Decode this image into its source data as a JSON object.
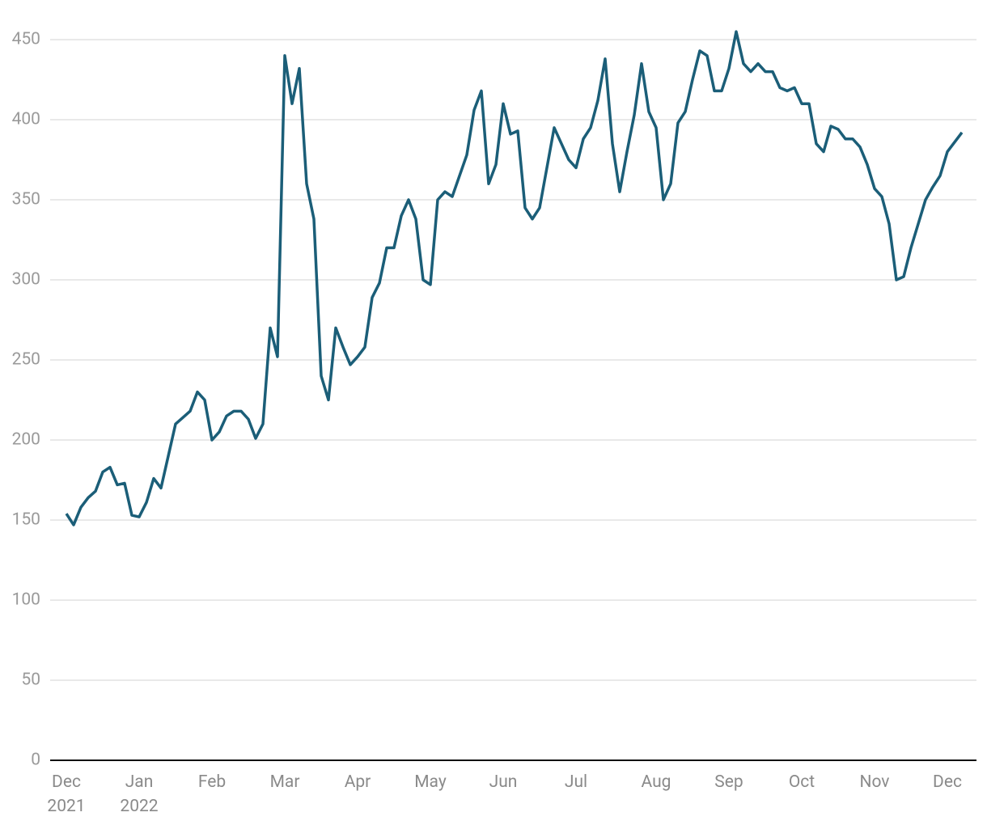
{
  "chart_data": {
    "type": "line",
    "categories": [
      "Dec\n2021",
      null,
      null,
      null,
      null,
      null,
      null,
      null,
      null,
      null,
      "Jan\n2022",
      null,
      null,
      null,
      null,
      null,
      null,
      null,
      null,
      null,
      "Feb",
      null,
      null,
      null,
      null,
      null,
      null,
      null,
      null,
      null,
      "Mar",
      null,
      null,
      null,
      null,
      null,
      null,
      null,
      null,
      null,
      "Apr",
      null,
      null,
      null,
      null,
      null,
      null,
      null,
      null,
      null,
      "May",
      null,
      null,
      null,
      null,
      null,
      null,
      null,
      null,
      null,
      "Jun",
      null,
      null,
      null,
      null,
      null,
      null,
      null,
      null,
      null,
      "Jul",
      null,
      null,
      null,
      null,
      null,
      null,
      null,
      null,
      null,
      null,
      "Aug",
      null,
      null,
      null,
      null,
      null,
      null,
      null,
      null,
      null,
      "Sep",
      null,
      null,
      null,
      null,
      null,
      null,
      null,
      null,
      null,
      "Oct",
      null,
      null,
      null,
      null,
      null,
      null,
      null,
      null,
      null,
      "Nov",
      null,
      null,
      null,
      null,
      null,
      null,
      null,
      null,
      null,
      "Dec",
      null,
      null
    ],
    "values": [
      154,
      147,
      158,
      164,
      168,
      180,
      183,
      172,
      173,
      153,
      152,
      161,
      176,
      170,
      190,
      210,
      214,
      218,
      230,
      225,
      200,
      205,
      215,
      218,
      218,
      213,
      201,
      210,
      270,
      252,
      440,
      410,
      432,
      360,
      338,
      240,
      225,
      270,
      258,
      247,
      252,
      258,
      289,
      298,
      320,
      320,
      340,
      350,
      338,
      300,
      297,
      350,
      355,
      352,
      365,
      378,
      406,
      418,
      360,
      372,
      410,
      391,
      393,
      345,
      338,
      345,
      370,
      395,
      385,
      375,
      370,
      388,
      395,
      412,
      438,
      385,
      355,
      380,
      403,
      435,
      405,
      395,
      350,
      360,
      398,
      405,
      425,
      443,
      440,
      418,
      418,
      432,
      455,
      435,
      430,
      435,
      430,
      430,
      420,
      418,
      420,
      410,
      410,
      385,
      380,
      396,
      394,
      388,
      388,
      383,
      372,
      357,
      352,
      335,
      300,
      302,
      320,
      335,
      350,
      358,
      365,
      380,
      386,
      392
    ],
    "color": "#1b5e78",
    "ylim": [
      0,
      450
    ],
    "yticks": [
      0,
      50,
      100,
      150,
      200,
      250,
      300,
      350,
      400,
      450
    ],
    "grid": true
  }
}
